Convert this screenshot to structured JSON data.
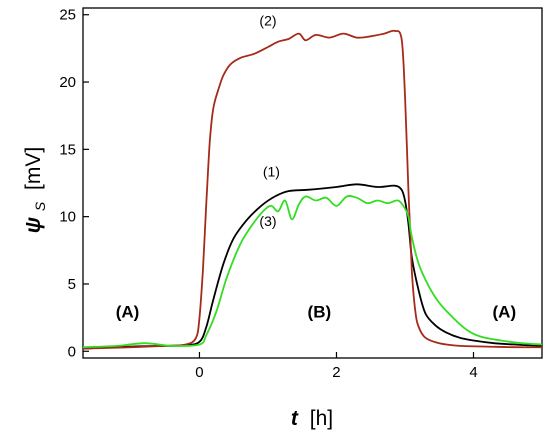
{
  "chart_data": {
    "type": "line",
    "title": "",
    "xlabel": {
      "symbol": "t",
      "unit": "[h]"
    },
    "ylabel": {
      "symbol": "ψ",
      "subscript": "S",
      "unit": "[mV]"
    },
    "xlim": [
      -1.7,
      5.0
    ],
    "ylim": [
      -0.5,
      25.5
    ],
    "xticks": [
      0,
      2,
      4
    ],
    "yticks": [
      0,
      5,
      10,
      15,
      20,
      25
    ],
    "grid": false,
    "legend": "none",
    "series": [
      {
        "label": "(1)",
        "color": "#000000",
        "x": [
          -1.7,
          -1.0,
          -0.5,
          -0.2,
          0.0,
          0.1,
          0.2,
          0.35,
          0.5,
          0.7,
          0.9,
          1.1,
          1.3,
          1.6,
          2.0,
          2.3,
          2.6,
          2.85,
          2.95,
          3.0,
          3.05,
          3.1,
          3.2,
          3.3,
          3.45,
          3.6,
          3.8,
          4.0,
          4.3,
          4.6,
          5.0
        ],
        "y": [
          0.2,
          0.35,
          0.4,
          0.45,
          0.7,
          1.8,
          3.8,
          6.5,
          8.4,
          9.8,
          10.8,
          11.5,
          11.9,
          12.0,
          12.2,
          12.4,
          12.2,
          12.3,
          12.0,
          11.2,
          9.5,
          7.0,
          4.5,
          2.8,
          1.9,
          1.4,
          1.0,
          0.8,
          0.6,
          0.5,
          0.4
        ]
      },
      {
        "label": "(2)",
        "color": "#a52a1a",
        "x": [
          -1.7,
          -1.0,
          -0.5,
          -0.2,
          -0.05,
          0.0,
          0.05,
          0.1,
          0.15,
          0.2,
          0.28,
          0.35,
          0.45,
          0.6,
          0.8,
          1.0,
          1.15,
          1.3,
          1.45,
          1.55,
          1.7,
          1.9,
          2.1,
          2.3,
          2.5,
          2.7,
          2.85,
          2.95,
          3.0,
          3.05,
          3.1,
          3.15,
          3.2,
          3.3,
          3.5,
          3.8,
          4.2,
          4.6,
          5.0
        ],
        "y": [
          0.2,
          0.3,
          0.4,
          0.5,
          1.0,
          2.5,
          6.0,
          11.0,
          15.5,
          18.0,
          19.5,
          20.5,
          21.3,
          21.8,
          22.1,
          22.6,
          23.0,
          23.2,
          23.6,
          23.1,
          23.5,
          23.3,
          23.6,
          23.3,
          23.4,
          23.6,
          23.8,
          23.2,
          19.0,
          12.0,
          6.0,
          3.0,
          1.8,
          1.0,
          0.6,
          0.4,
          0.35,
          0.3,
          0.3
        ]
      },
      {
        "label": "(3)",
        "color": "#33dd22",
        "x": [
          -1.7,
          -1.2,
          -0.8,
          -0.4,
          0.0,
          0.1,
          0.25,
          0.4,
          0.6,
          0.8,
          0.95,
          1.05,
          1.15,
          1.25,
          1.35,
          1.45,
          1.55,
          1.7,
          1.85,
          2.0,
          2.15,
          2.3,
          2.45,
          2.6,
          2.75,
          2.9,
          3.0,
          3.05,
          3.1,
          3.2,
          3.35,
          3.5,
          3.7,
          3.9,
          4.1,
          4.4,
          4.7,
          5.0
        ],
        "y": [
          0.3,
          0.4,
          0.6,
          0.4,
          0.5,
          1.2,
          3.0,
          5.5,
          8.0,
          9.6,
          10.5,
          10.8,
          10.4,
          11.2,
          9.8,
          10.9,
          11.5,
          11.2,
          11.4,
          10.8,
          11.5,
          11.4,
          11.0,
          11.2,
          11.0,
          11.2,
          10.6,
          10.0,
          8.5,
          6.5,
          4.8,
          3.6,
          2.5,
          1.6,
          1.1,
          0.8,
          0.6,
          0.5
        ]
      }
    ],
    "annotations": [
      {
        "text": "(1)",
        "x": 1.05,
        "y": 13.0
      },
      {
        "text": "(2)",
        "x": 1.0,
        "y": 24.2
      },
      {
        "text": "(3)",
        "x": 1.0,
        "y": 9.3
      }
    ],
    "region_labels": [
      {
        "text": "(A)",
        "x": -1.05,
        "y": 2.5
      },
      {
        "text": "(B)",
        "x": 1.75,
        "y": 2.5
      },
      {
        "text": "(A)",
        "x": 4.45,
        "y": 2.5
      }
    ]
  }
}
